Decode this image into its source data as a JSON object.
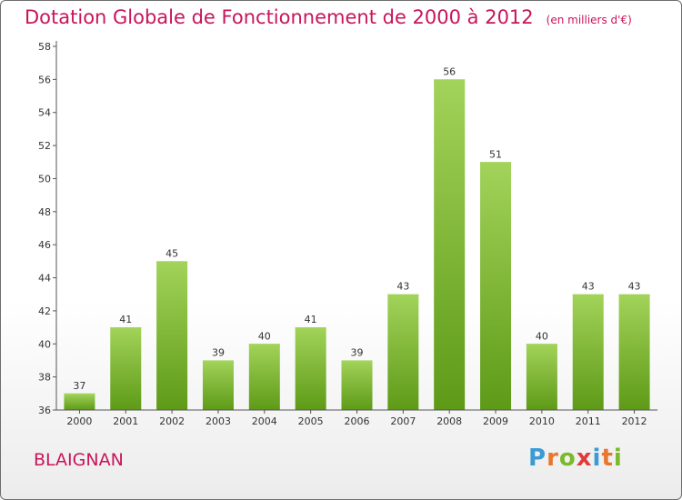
{
  "header": {
    "title": "Dotation Globale de Fonctionnement de 2000 à 2012",
    "unit": "(en milliers d'€)"
  },
  "commune": "BLAIGNAN",
  "logo": {
    "letters": [
      "P",
      "r",
      "o",
      "x",
      "i",
      "t",
      "i"
    ],
    "colors": [
      "#3a9bd5",
      "#e8772e",
      "#7ab929",
      "#e13a3a",
      "#3a9bd5",
      "#e8772e",
      "#7ab929"
    ]
  },
  "colors": {
    "accent": "#c8155a",
    "bar_light": "#a2d35a",
    "bar_dark": "#5e9a17",
    "axis": "#555555"
  },
  "chart_data": {
    "type": "bar",
    "title": "Dotation Globale de Fonctionnement de 2000 à 2012",
    "subtitle": "(en milliers d'€)",
    "xlabel": "",
    "ylabel": "",
    "categories": [
      "2000",
      "2001",
      "2002",
      "2003",
      "2004",
      "2005",
      "2006",
      "2007",
      "2008",
      "2009",
      "2010",
      "2011",
      "2012"
    ],
    "values": [
      37,
      41,
      45,
      39,
      40,
      41,
      39,
      43,
      56,
      51,
      40,
      43,
      43
    ],
    "ylim": [
      36,
      58
    ],
    "yticks": [
      36,
      38,
      40,
      42,
      44,
      46,
      48,
      50,
      52,
      54,
      56,
      58
    ],
    "grid": false,
    "legend": "none"
  }
}
